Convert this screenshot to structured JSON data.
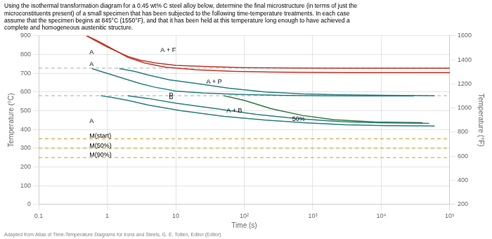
{
  "chart_data": {
    "type": "line",
    "title": [
      "Using the isothermal transformation diagram for a 0.45 wt% C steel alloy below, determine the final microstructure (in terms of just the",
      "microconstituents present) of a small specimen that has been subjected to the following time-temperature treatments. In each case",
      "assume that the specimen begins at 845°C (1550°F), and that it has been held at this temperature long enough to have achieved a",
      "complete and homogeneous austenitic structure."
    ],
    "subtitle": "Adapted from Atlas of Time-Temperature Diagrams for Irons and Steels, G. E. Totten, Editor (Editor)",
    "x_label": "Time (s)",
    "y_label": "Temperature (°C)",
    "y2_label": "Temperature (°F)",
    "log": "x",
    "grid": true,
    "xlim": [
      0.1,
      100000
    ],
    "xticks": [
      0.1,
      1,
      10,
      {
        "value": 100,
        "label": "10²"
      },
      {
        "value": 1000,
        "label": "10³"
      },
      {
        "value": 10000,
        "label": "10⁴"
      },
      {
        "value": 100000,
        "label": "10⁵"
      }
    ],
    "ylim": [
      0,
      900
    ],
    "yticks": [
      0,
      100,
      200,
      300,
      400,
      500,
      600,
      700,
      800,
      900
    ],
    "y2lim": [
      200,
      1600
    ],
    "y2ticks": [
      200,
      400,
      600,
      800,
      1000,
      1200,
      1400,
      1600
    ],
    "series": [
      {
        "type": "hline",
        "color": "#aaaaaa",
        "line_style": "dashed",
        "values": [
          727
        ]
      },
      {
        "type": "hline",
        "color": "#aaaaaa",
        "line_style": "dashed",
        "values": [
          580
        ]
      },
      {
        "type": "hline",
        "color": "#c8a020",
        "line_style": "dashed",
        "values": [
          350
        ]
      },
      {
        "type": "hline",
        "color": "#c8a020",
        "line_style": "dashed",
        "values": [
          300
        ]
      },
      {
        "type": "hline",
        "color": "#c8a020",
        "line_style": "dashed",
        "values": [
          250
        ]
      },
      {
        "type": "line",
        "color": "#c0392b",
        "line_style": "solid",
        "x": [
          0.5,
          0.7,
          1.0,
          1.5,
          2,
          3,
          5,
          10,
          30,
          100,
          500,
          2000,
          10000,
          100000
        ],
        "values": [
          900,
          870,
          840,
          810,
          790,
          770,
          755,
          742,
          735,
          730,
          728,
          727,
          727,
          727
        ]
      },
      {
        "type": "line",
        "color": "#c0392b",
        "line_style": "solid",
        "x": [
          0.5,
          0.7,
          1.0,
          1.5,
          2,
          3.5,
          7,
          20,
          70,
          250,
          1000,
          4000,
          20000,
          100000
        ],
        "values": [
          900,
          875,
          845,
          810,
          785,
          755,
          732,
          718,
          710,
          706,
          704,
          703,
          703,
          703
        ]
      },
      {
        "type": "line",
        "color": "#2a8080",
        "line_style": "solid",
        "x": [
          0.6,
          0.8,
          1.2,
          2,
          3,
          5,
          10,
          25,
          80,
          300,
          1200,
          5000,
          30000
        ],
        "values": [
          725,
          710,
          690,
          665,
          645,
          625,
          605,
          595,
          587,
          582,
          580,
          579,
          579
        ]
      },
      {
        "type": "line",
        "color": "#2a8080",
        "line_style": "solid",
        "x": [
          1.5,
          2.5,
          4,
          8,
          20,
          60,
          200,
          700,
          2500,
          10000,
          60000
        ],
        "values": [
          725,
          710,
          690,
          665,
          645,
          620,
          600,
          590,
          585,
          582,
          580
        ]
      },
      {
        "type": "line",
        "color": "#2a8080",
        "line_style": "solid",
        "x": [
          0.8,
          1.2,
          2,
          4,
          12,
          50,
          200,
          800,
          3000,
          12000,
          60000
        ],
        "values": [
          580,
          570,
          555,
          530,
          500,
          470,
          450,
          435,
          425,
          420,
          418
        ]
      },
      {
        "type": "line",
        "color": "#2a8080",
        "line_style": "solid",
        "x": [
          2,
          4,
          10,
          40,
          150,
          600,
          2500,
          10000,
          50000
        ],
        "values": [
          580,
          565,
          540,
          510,
          480,
          458,
          442,
          435,
          432
        ]
      },
      {
        "type": "line",
        "color": "#2d7a3a",
        "line_style": "solid",
        "x": [
          50,
          100,
          250,
          700,
          2000,
          8000,
          40000
        ],
        "values": [
          580,
          555,
          510,
          475,
          452,
          440,
          436
        ]
      }
    ],
    "annotations": [
      {
        "text": "A",
        "x": 0.55,
        "y": 800
      },
      {
        "text": "A + F",
        "x": 6,
        "y": 812
      },
      {
        "text": "A + P",
        "x": 28,
        "y": 645
      },
      {
        "text": "A + B",
        "x": 55,
        "y": 492
      },
      {
        "text": "50%",
        "x": 500,
        "y": 445
      },
      {
        "text": "P",
        "x": 8,
        "y": 574
      },
      {
        "text": "B",
        "x": 8,
        "y": 560
      },
      {
        "text": "A",
        "x": 0.55,
        "y": 738
      },
      {
        "text": "M(start)",
        "x": 0.55,
        "y": 356
      },
      {
        "text": "M(50%)",
        "x": 0.55,
        "y": 304
      },
      {
        "text": "M(90%)",
        "x": 0.55,
        "y": 254
      },
      {
        "text": "A",
        "x": 0.55,
        "y": 435
      }
    ]
  }
}
